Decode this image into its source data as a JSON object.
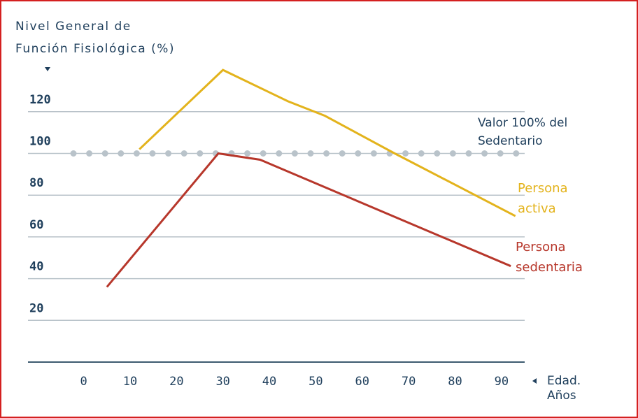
{
  "chart_data": {
    "type": "line",
    "y_label": [
      "Nivel General de",
      "Función Fisiológica (%)"
    ],
    "x_label": [
      "Edad.",
      "Años"
    ],
    "xlim": [
      -12,
      95
    ],
    "xticks": [
      0,
      10,
      20,
      30,
      40,
      50,
      60,
      70,
      80,
      90
    ],
    "ylim": [
      0,
      140
    ],
    "yticks": [
      20,
      40,
      60,
      80,
      100,
      120
    ],
    "grid": true,
    "reference_line": {
      "value": 100,
      "label": [
        "Valor 100% del",
        "Sedentario"
      ],
      "color": "#b9c3ca"
    },
    "series": [
      {
        "name": "Persona activa",
        "color": "#e3b31c",
        "x": [
          12,
          30,
          44,
          52,
          67,
          93
        ],
        "values": [
          102,
          140,
          125,
          118,
          100,
          70
        ]
      },
      {
        "name": "Persona sedentaria",
        "color": "#b7372b",
        "x": [
          5,
          29,
          38,
          92
        ],
        "values": [
          36,
          100,
          97,
          46
        ]
      }
    ]
  }
}
